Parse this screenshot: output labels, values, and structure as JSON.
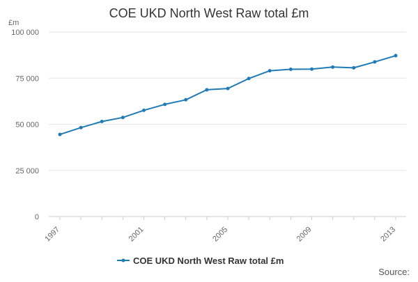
{
  "chart_data": {
    "type": "line",
    "title": "COE UKD North West Raw total £m",
    "ylabel": "£m",
    "xlabel": "",
    "x": [
      1997,
      1998,
      1999,
      2000,
      2001,
      2002,
      2003,
      2004,
      2005,
      2006,
      2007,
      2008,
      2009,
      2010,
      2011,
      2012,
      2013
    ],
    "x_tick_labels": [
      "1997",
      "2001",
      "2005",
      "2009",
      "2013"
    ],
    "y_tick_labels": [
      "0",
      "25 000",
      "50 000",
      "75 000",
      "100 000"
    ],
    "ylim": [
      0,
      100000
    ],
    "xlim": [
      1997,
      2013
    ],
    "grid": true,
    "legend_position": "bottom",
    "series": [
      {
        "name": "COE UKD North West Raw total £m",
        "color": "#1f7bb6",
        "values": [
          44500,
          48200,
          51500,
          53700,
          57600,
          60800,
          63300,
          68700,
          69400,
          74800,
          79000,
          79800,
          79900,
          81000,
          80600,
          83800,
          87200
        ]
      }
    ]
  },
  "source_label": "Source:"
}
